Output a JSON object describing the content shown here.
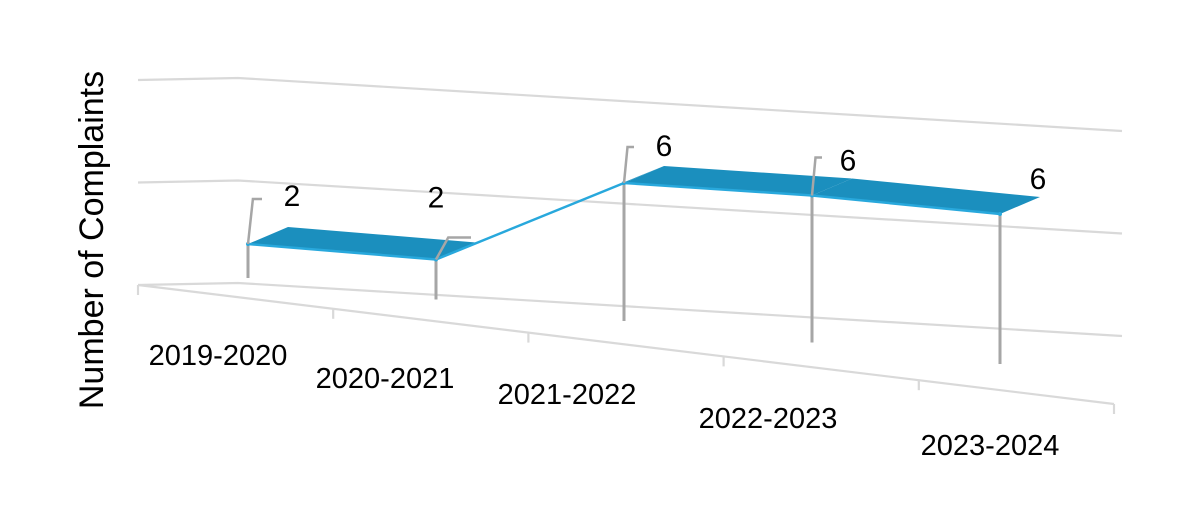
{
  "chart_data": {
    "type": "line",
    "title": "",
    "xlabel": "",
    "ylabel": "Number of Complaints",
    "categories": [
      "2019-2020",
      "2020-2021",
      "2021-2022",
      "2022-2023",
      "2023-2024"
    ],
    "series": [
      {
        "values": [
          2,
          2,
          6,
          6,
          6
        ]
      }
    ],
    "data_labels": [
      "2",
      "2",
      "6",
      "6",
      "6"
    ],
    "ylim": [
      0,
      10
    ],
    "grid": true,
    "legend": "none",
    "style": "3d-ribbon",
    "colors": {
      "series": "#1b8fbe",
      "series_dark": "#0a6f99",
      "series_edge": "#28a8dc",
      "grid": "#d9d9d9",
      "drop_lines": "#a6a6a6"
    }
  }
}
